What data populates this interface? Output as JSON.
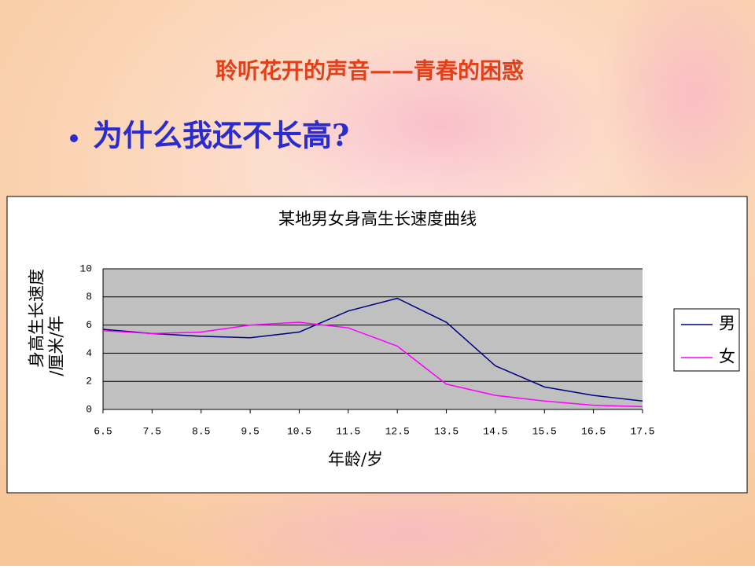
{
  "slide": {
    "title": "聆听花开的声音——青春的困惑",
    "bullet": "为什么我还不长高?"
  },
  "chart_data": {
    "type": "line",
    "title": "某地男女身高生长速度曲线",
    "ylabel": [
      "身高生长速度",
      "/厘米/年"
    ],
    "xlabel": "年龄/岁",
    "x": [
      6.5,
      7.5,
      8.5,
      9.5,
      10.5,
      11.5,
      12.5,
      13.5,
      14.5,
      15.5,
      16.5,
      17.5
    ],
    "xlim": [
      6.5,
      17.5
    ],
    "xticks": [
      6.5,
      7.5,
      8.5,
      9.5,
      10.5,
      11.5,
      12.5,
      13.5,
      14.5,
      15.5,
      16.5,
      17.5
    ],
    "ylim": [
      0,
      10
    ],
    "yticks": [
      0,
      2,
      4,
      6,
      8,
      10
    ],
    "grid": true,
    "legend": "right",
    "series": [
      {
        "name": "男",
        "color": "#000080",
        "values": [
          5.7,
          5.4,
          5.2,
          5.1,
          5.5,
          7.0,
          7.9,
          6.2,
          3.1,
          1.6,
          1.0,
          0.6
        ]
      },
      {
        "name": "女",
        "color": "#ff00ff",
        "values": [
          5.6,
          5.4,
          5.5,
          6.0,
          6.2,
          5.8,
          4.5,
          1.8,
          1.0,
          0.6,
          0.3,
          0.2
        ]
      }
    ]
  }
}
